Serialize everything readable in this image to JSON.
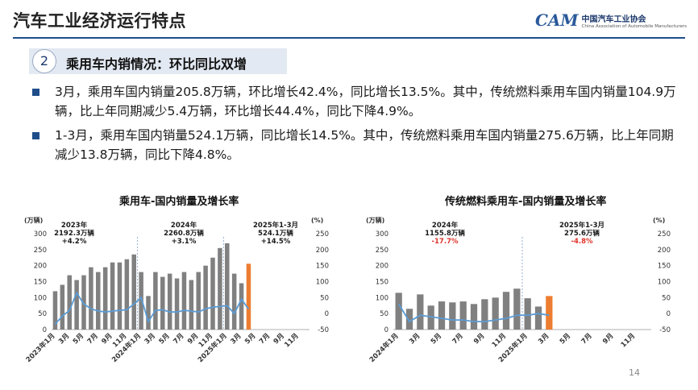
{
  "header": {
    "title": "汽车工业经济运行特点",
    "logo_mark": "CAM",
    "logo_cn": "中国汽车工业协会",
    "logo_en": "China Association of Automobile Manufacturers",
    "accent": "#1f4e8a"
  },
  "section": {
    "number": "2",
    "title": "乘用车内销情况：环比同比双增"
  },
  "bullets": [
    "3月，乘用车国内销量205.8万辆，环比增长42.4%，同比增长13.5%。其中，传统燃料乘用车国内销量104.9万辆，比上年同期减少5.4万辆，环比增长44.4%，同比下降4.9%。",
    "1-3月，乘用车国内销量524.1万辆，同比增长14.5%。其中，传统燃料乘用车国内销量275.6万辆，比上年同期减少13.8万辆，同比下降4.8%。"
  ],
  "page_number": "14",
  "chart_data": [
    {
      "type": "bar",
      "title": "乘用车-国内销量及增长率",
      "left_unit": "(万辆)",
      "right_unit": "(%)",
      "ylim": [
        0,
        300
      ],
      "y_ticks": [
        "0",
        "50",
        "100",
        "150",
        "200",
        "250",
        "300"
      ],
      "y2lim": [
        -50,
        250
      ],
      "y2_ticks": [
        "-50",
        "0",
        "50",
        "100",
        "150",
        "200",
        "250"
      ],
      "x_labels": [
        "2023年1月",
        "3月",
        "5月",
        "7月",
        "9月",
        "11月",
        "2024年1月",
        "3月",
        "5月",
        "7月",
        "9月",
        "11月",
        "2025年1月",
        "3月",
        "5月",
        "7月",
        "9月",
        "11月"
      ],
      "bar_color": "#808080",
      "highlight_color": "#ed7d31",
      "line_color": "#5b9bd5",
      "bars": [
        120,
        140,
        170,
        155,
        170,
        195,
        180,
        195,
        210,
        210,
        220,
        235,
        180,
        105,
        180,
        165,
        175,
        160,
        180,
        155,
        180,
        200,
        225,
        255,
        270,
        175,
        145,
        206
      ],
      "growth": [
        -33,
        -8,
        10,
        65,
        30,
        15,
        8,
        5,
        8,
        10,
        12,
        30,
        50,
        -25,
        10,
        12,
        5,
        5,
        10,
        8,
        5,
        15,
        20,
        22,
        25,
        0,
        45,
        14
      ],
      "annotations": [
        {
          "year": "2023年",
          "value": "2192.3万辆",
          "growth": "+4.2%"
        },
        {
          "year": "2024年",
          "value": "2260.8万辆",
          "growth": "+3.1%"
        },
        {
          "year": "2025年1-3月",
          "value": "524.1万辆",
          "growth": "+14.5%"
        }
      ]
    },
    {
      "type": "bar",
      "title": "传统燃料乘用车-国内销量及增长率",
      "left_unit": "(万辆)",
      "right_unit": "(%)",
      "ylim": [
        0,
        300
      ],
      "y_ticks": [
        "0",
        "50",
        "100",
        "150",
        "200",
        "250",
        "300"
      ],
      "y2lim": [
        -50,
        250
      ],
      "y2_ticks": [
        "-50",
        "0",
        "50",
        "100",
        "150",
        "200",
        "250"
      ],
      "x_labels": [
        "2024年1月",
        "3月",
        "5月",
        "7月",
        "9月",
        "11月",
        "2025年1月",
        "3月",
        "5月",
        "7月",
        "9月",
        "11月"
      ],
      "bar_color": "#808080",
      "highlight_color": "#ed7d31",
      "line_color": "#5b9bd5",
      "bars": [
        115,
        65,
        110,
        75,
        88,
        85,
        88,
        80,
        95,
        100,
        118,
        128,
        98,
        72,
        105
      ],
      "growth": [
        30,
        -25,
        -5,
        -10,
        -15,
        -20,
        -20,
        -25,
        -25,
        -20,
        -15,
        -5,
        -5,
        0,
        -5
      ],
      "annotations": [
        {
          "year": "2024年",
          "value": "1155.8万辆",
          "growth": "-17.7%"
        },
        {
          "year": "2025年1-3月",
          "value": "275.6万辆",
          "growth": "-4.8%"
        }
      ]
    }
  ]
}
